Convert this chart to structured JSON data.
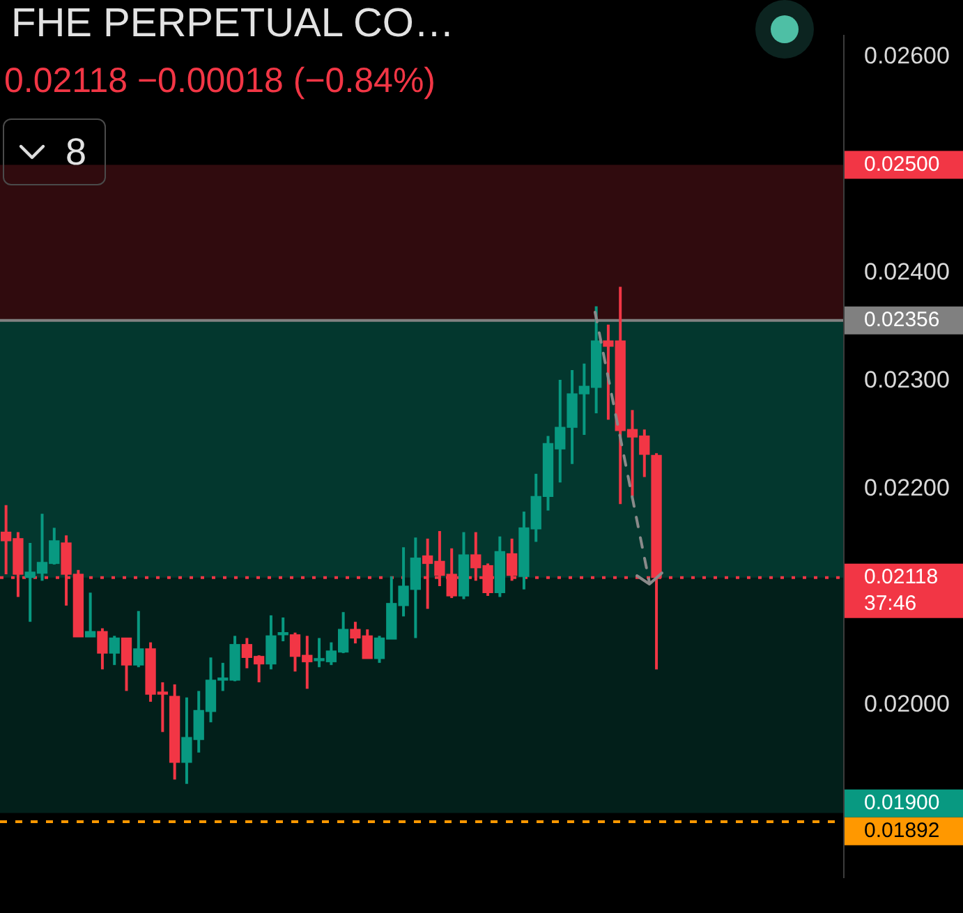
{
  "chart_data": {
    "type": "candlestick",
    "title": "FHE PERPETUAL CO…",
    "subtitle": "0.02118 −0.00018 (−0.84%)",
    "categories": [
      null,
      null,
      null,
      null,
      null,
      null,
      null,
      null,
      null,
      null,
      null,
      null,
      null,
      null,
      null,
      null,
      null,
      null,
      null,
      null,
      null,
      null,
      null,
      null,
      null,
      null,
      null,
      null,
      null,
      null,
      null,
      null,
      null,
      null,
      null,
      null,
      null,
      null,
      null,
      null,
      null,
      null,
      null,
      null,
      null,
      null,
      null,
      null,
      null,
      null,
      null,
      null,
      null,
      null,
      null,
      null,
      null,
      null,
      null,
      null,
      null,
      null,
      null,
      null,
      null,
      null,
      null,
      null,
      null,
      null
    ],
    "ohlc": [
      [
        0.0216,
        0.02185,
        0.02121,
        0.02152
      ],
      [
        0.02154,
        0.0216,
        0.021,
        0.02121
      ],
      [
        0.02118,
        0.0215,
        0.02077,
        0.02123
      ],
      [
        0.02122,
        0.02177,
        0.02115,
        0.02132
      ],
      [
        0.02131,
        0.02164,
        0.0213,
        0.02152
      ],
      [
        0.0215,
        0.02157,
        0.02092,
        0.02121
      ],
      [
        0.02121,
        0.02125,
        0.02063,
        0.02063
      ],
      [
        0.02063,
        0.02104,
        0.02063,
        0.02068
      ],
      [
        0.02068,
        0.02071,
        0.02033,
        0.02048
      ],
      [
        0.02048,
        0.02064,
        0.02037,
        0.02062
      ],
      [
        0.02062,
        0.02062,
        0.02013,
        0.02037
      ],
      [
        0.02037,
        0.02087,
        0.02035,
        0.02052
      ],
      [
        0.02052,
        0.02058,
        0.02003,
        0.0201
      ],
      [
        0.02012,
        0.02021,
        0.01975,
        0.0201
      ],
      [
        0.02008,
        0.02019,
        0.01931,
        0.01947
      ],
      [
        0.01947,
        0.02007,
        0.01927,
        0.0197
      ],
      [
        0.01968,
        0.02013,
        0.01956,
        0.01995
      ],
      [
        0.01994,
        0.02044,
        0.01984,
        0.02023
      ],
      [
        0.02023,
        0.02039,
        0.02013,
        0.02025
      ],
      [
        0.02023,
        0.02064,
        0.02022,
        0.02056
      ],
      [
        0.02056,
        0.02062,
        0.02034,
        0.02044
      ],
      [
        0.02045,
        0.02046,
        0.02021,
        0.02038
      ],
      [
        0.02038,
        0.02083,
        0.02033,
        0.02064
      ],
      [
        0.02065,
        0.02081,
        0.02059,
        0.02067
      ],
      [
        0.02065,
        0.02067,
        0.02031,
        0.02045
      ],
      [
        0.02046,
        0.02064,
        0.02015,
        0.0204
      ],
      [
        0.02041,
        0.02062,
        0.02035,
        0.02043
      ],
      [
        0.0204,
        0.02058,
        0.02037,
        0.0205
      ],
      [
        0.02049,
        0.02086,
        0.02048,
        0.0207
      ],
      [
        0.0207,
        0.02077,
        0.02057,
        0.02062
      ],
      [
        0.02064,
        0.0207,
        0.02043,
        0.02043
      ],
      [
        0.02043,
        0.02064,
        0.02039,
        0.02062
      ],
      [
        0.02061,
        0.02119,
        0.02061,
        0.02094
      ],
      [
        0.02092,
        0.02146,
        0.02082,
        0.0211
      ],
      [
        0.02107,
        0.02155,
        0.02062,
        0.02136
      ],
      [
        0.02138,
        0.02154,
        0.02089,
        0.02131
      ],
      [
        0.02133,
        0.02161,
        0.0211,
        0.0212
      ],
      [
        0.02121,
        0.02145,
        0.02099,
        0.02101
      ],
      [
        0.02101,
        0.0216,
        0.02098,
        0.02139
      ],
      [
        0.02139,
        0.0216,
        0.02115,
        0.02127
      ],
      [
        0.02129,
        0.02131,
        0.02101,
        0.02104
      ],
      [
        0.02104,
        0.02156,
        0.021,
        0.02142
      ],
      [
        0.0214,
        0.02154,
        0.02115,
        0.0212
      ],
      [
        0.02119,
        0.02179,
        0.02107,
        0.02164
      ],
      [
        0.02163,
        0.02214,
        0.02151,
        0.02193
      ],
      [
        0.02193,
        0.02249,
        0.0218,
        0.02242
      ],
      [
        0.02237,
        0.02301,
        0.02206,
        0.02257
      ],
      [
        0.02257,
        0.0231,
        0.02223,
        0.02288
      ],
      [
        0.02288,
        0.02316,
        0.0225,
        0.02295
      ],
      [
        0.02294,
        0.02369,
        0.0227,
        0.02337
      ],
      [
        0.02337,
        0.02352,
        0.02264,
        0.02332
      ],
      [
        0.02337,
        0.02387,
        0.02186,
        0.02254
      ],
      [
        0.02255,
        0.02273,
        0.02193,
        0.02248
      ],
      [
        0.02249,
        0.02255,
        0.02211,
        0.02232
      ],
      [
        0.02231,
        0.02233,
        0.02033,
        0.02118
      ],
      null,
      null,
      null,
      null,
      null,
      null,
      null,
      null,
      null,
      null,
      null,
      null,
      null,
      null,
      null
    ],
    "colors": [
      "#f23645",
      "#f23645",
      "#089981",
      "#089981",
      "#089981",
      "#f23645",
      "#f23645",
      "#089981",
      "#f23645",
      "#089981",
      "#f23645",
      "#089981",
      "#f23645",
      "#f23645",
      "#f23645",
      "#089981",
      "#089981",
      "#089981",
      "#089981",
      "#089981",
      "#f23645",
      "#f23645",
      "#089981",
      "#089981",
      "#f23645",
      "#f23645",
      "#089981",
      "#089981",
      "#089981",
      "#f23645",
      "#f23645",
      "#089981",
      "#089981",
      "#089981",
      "#089981",
      "#f23645",
      "#f23645",
      "#f23645",
      "#089981",
      "#f23645",
      "#f23645",
      "#089981",
      "#f23645",
      "#089981",
      "#089981",
      "#089981",
      "#089981",
      "#089981",
      "#089981",
      "#089981",
      "#f23645",
      "#f23645",
      "#f23645",
      "#f23645",
      "#f23645",
      null,
      null,
      null,
      null,
      null,
      null,
      null,
      null,
      null,
      null,
      null,
      null,
      null,
      null,
      null
    ],
    "ylim": [
      0.0184,
      0.0262
    ],
    "yticks": [
      {
        "value": 0.026,
        "label": "0.02600"
      },
      {
        "value": 0.024,
        "label": "0.02400"
      },
      {
        "value": 0.023,
        "label": "0.02300"
      },
      {
        "value": 0.022,
        "label": "0.02200"
      },
      {
        "value": 0.02,
        "label": "0.02000"
      }
    ],
    "tick_labels": "y",
    "bands": [
      {
        "axis": "y",
        "from": 0.02356,
        "to": 0.025,
        "label": "0.02500",
        "color": "#f23645"
      },
      {
        "axis": "y",
        "from": 0.019,
        "to": 0.02356,
        "label": "0.01900",
        "color": "#089981"
      },
      {
        "axis": "y",
        "from": 0.02118,
        "to": 0.02356,
        "color": "#089981"
      }
    ],
    "ref_lines": [
      {
        "axis": "y",
        "value": 0.02356,
        "label": "0.02356",
        "color": "#808080",
        "line_style": "solid"
      },
      {
        "axis": "y",
        "value": 0.02118,
        "label": "0.02118\n37:46",
        "color": "#f23645",
        "line_style": "dotted"
      },
      {
        "axis": "y",
        "value": 0.01892,
        "label": "0.01892",
        "color": "#ff9800",
        "line_style": "dashed"
      }
    ],
    "annotations": [
      "8"
    ]
  }
}
